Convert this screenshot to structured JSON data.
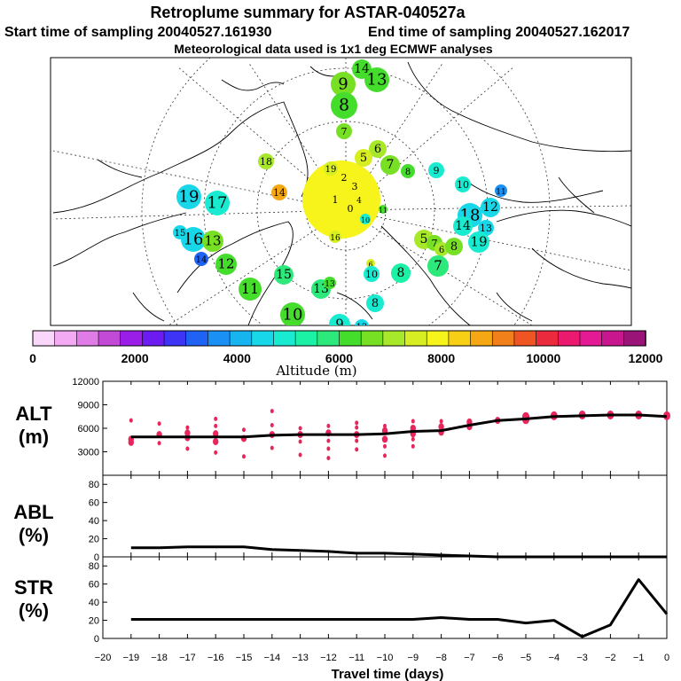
{
  "header": {
    "title": "Retroplume summary for ASTAR-040527a",
    "start": "Start time of sampling 20040527.161930",
    "end": "End time of sampling 20040527.162017",
    "met": "Meteorological data used is 1x1 deg ECMWF analyses"
  },
  "colorbar": {
    "colors": [
      "#fbd6fb",
      "#f3aaf3",
      "#e07ce6",
      "#c24ad6",
      "#9a1ee8",
      "#6c1cf0",
      "#3d34f5",
      "#1f63f5",
      "#1a90f5",
      "#18b4f0",
      "#17d7e8",
      "#18ebd0",
      "#1cf2a6",
      "#2de87a",
      "#44dd2c",
      "#78e024",
      "#a8e82a",
      "#d7ee22",
      "#f6f41a",
      "#f7d016",
      "#f5a814",
      "#f2801a",
      "#ee5522",
      "#ec2a3e",
      "#ec1a6e",
      "#e41a94",
      "#c8168e",
      "#9a1478"
    ],
    "ticks": [
      "0",
      "2000",
      "4000",
      "6000",
      "8000",
      "10000",
      "12000"
    ],
    "label": "Altitude (m)"
  },
  "map": {
    "points": [
      {
        "label": "14",
        "color": "#44dd2c"
      },
      {
        "label": "9",
        "color": "#78e024"
      },
      {
        "label": "13",
        "color": "#44dd2c"
      },
      {
        "label": "8",
        "color": "#44dd2c"
      },
      {
        "label": "7",
        "color": "#78e024"
      },
      {
        "label": "6",
        "color": "#a8e82a"
      },
      {
        "label": "5",
        "color": "#d7ee22"
      },
      {
        "label": "7",
        "color": "#78e024"
      },
      {
        "label": "8",
        "color": "#44dd2c"
      },
      {
        "label": "9",
        "color": "#18ebd0"
      },
      {
        "label": "10",
        "color": "#18ebd0"
      },
      {
        "label": "11",
        "color": "#1a90f5"
      },
      {
        "label": "12",
        "color": "#17d7e8"
      },
      {
        "label": "18",
        "color": "#17d7e8"
      },
      {
        "label": "14",
        "color": "#18ebd0"
      },
      {
        "label": "13",
        "color": "#17d7e8"
      },
      {
        "label": "19",
        "color": "#18ebd0"
      },
      {
        "label": "5",
        "color": "#a8e82a"
      },
      {
        "label": "7",
        "color": "#78e024"
      },
      {
        "label": "6",
        "color": "#a8e82a"
      },
      {
        "label": "8",
        "color": "#78e024"
      },
      {
        "label": "7",
        "color": "#2de87a"
      },
      {
        "label": "8",
        "color": "#1cf2a6"
      },
      {
        "label": "6",
        "color": "#d7ee22"
      },
      {
        "label": "10",
        "color": "#18ebd0"
      },
      {
        "label": "8",
        "color": "#18ebd0"
      },
      {
        "label": "9",
        "color": "#18ebd0"
      },
      {
        "label": "12",
        "color": "#17d7e8"
      },
      {
        "label": "10",
        "color": "#44dd2c"
      },
      {
        "label": "13",
        "color": "#2de87a"
      },
      {
        "label": "13",
        "color": "#44dd2c"
      },
      {
        "label": "15",
        "color": "#2de87a"
      },
      {
        "label": "11",
        "color": "#44dd2c"
      },
      {
        "label": "12",
        "color": "#44dd2c"
      },
      {
        "label": "14",
        "color": "#1f63f5"
      },
      {
        "label": "16",
        "color": "#17d7e8"
      },
      {
        "label": "15",
        "color": "#17d7e8"
      },
      {
        "label": "13",
        "color": "#78e024"
      },
      {
        "label": "19",
        "color": "#17d7e8"
      },
      {
        "label": "17",
        "color": "#18ebd0"
      },
      {
        "label": "18",
        "color": "#a8e82a"
      },
      {
        "label": "14",
        "color": "#f5a814"
      },
      {
        "label": "19",
        "color": "#d7ee22"
      },
      {
        "label": "2",
        "color": "#f6f41a"
      },
      {
        "label": "3",
        "color": "#f6f41a"
      },
      {
        "label": "1",
        "color": "#f6f41a"
      },
      {
        "label": "0",
        "color": "#f6f41a"
      },
      {
        "label": "4",
        "color": "#f6f41a"
      },
      {
        "label": "16",
        "color": "#d7ee22"
      },
      {
        "label": "10",
        "color": "#18ebd0"
      },
      {
        "label": "11",
        "color": "#44dd2c"
      }
    ]
  },
  "chart_data": [
    {
      "type": "line",
      "name": "ALT",
      "ylabel": "ALT (m)",
      "ylabel_lines": [
        "ALT",
        "(m)"
      ],
      "ylim": [
        0,
        12000
      ],
      "yticks": [
        "3000",
        "6000",
        "9000",
        "12000"
      ],
      "xlim": [
        -20,
        0
      ],
      "x": [
        -19,
        -18,
        -17,
        -16,
        -15,
        -14,
        -13,
        -12,
        -11,
        -10,
        -9,
        -8,
        -7,
        -6,
        -5,
        -4,
        -3,
        -2,
        -1,
        0
      ],
      "values": [
        4900,
        4900,
        4900,
        4900,
        4900,
        5100,
        5200,
        5200,
        5200,
        5300,
        5600,
        5700,
        6400,
        7000,
        7200,
        7500,
        7600,
        7700,
        7700,
        7500
      ],
      "scatter": [
        {
          "x": -19,
          "y": 7000
        },
        {
          "x": -19,
          "y": 4600
        },
        {
          "x": -19,
          "y": 4200
        },
        {
          "x": -18,
          "y": 6600
        },
        {
          "x": -18,
          "y": 5200
        },
        {
          "x": -18,
          "y": 4100
        },
        {
          "x": -17,
          "y": 6100
        },
        {
          "x": -17,
          "y": 5400
        },
        {
          "x": -17,
          "y": 4800
        },
        {
          "x": -17,
          "y": 3400
        },
        {
          "x": -16,
          "y": 7200
        },
        {
          "x": -16,
          "y": 6300
        },
        {
          "x": -16,
          "y": 5300
        },
        {
          "x": -16,
          "y": 4300
        },
        {
          "x": -16,
          "y": 2900
        },
        {
          "x": -15,
          "y": 5800
        },
        {
          "x": -15,
          "y": 4700
        },
        {
          "x": -15,
          "y": 2400
        },
        {
          "x": -14,
          "y": 8200
        },
        {
          "x": -14,
          "y": 6400
        },
        {
          "x": -14,
          "y": 5200
        },
        {
          "x": -14,
          "y": 3500
        },
        {
          "x": -13,
          "y": 6000
        },
        {
          "x": -13,
          "y": 5200
        },
        {
          "x": -13,
          "y": 4300
        },
        {
          "x": -13,
          "y": 2600
        },
        {
          "x": -12,
          "y": 6300
        },
        {
          "x": -12,
          "y": 5400
        },
        {
          "x": -12,
          "y": 4400
        },
        {
          "x": -12,
          "y": 3400
        },
        {
          "x": -12,
          "y": 2200
        },
        {
          "x": -11,
          "y": 6700
        },
        {
          "x": -11,
          "y": 6100
        },
        {
          "x": -11,
          "y": 5200
        },
        {
          "x": -11,
          "y": 4400
        },
        {
          "x": -11,
          "y": 3300
        },
        {
          "x": -10,
          "y": 6300
        },
        {
          "x": -10,
          "y": 5700
        },
        {
          "x": -10,
          "y": 4600
        },
        {
          "x": -10,
          "y": 3700
        },
        {
          "x": -10,
          "y": 2500
        },
        {
          "x": -9,
          "y": 6900
        },
        {
          "x": -9,
          "y": 6000
        },
        {
          "x": -9,
          "y": 5300
        },
        {
          "x": -9,
          "y": 4600
        },
        {
          "x": -9,
          "y": 3700
        },
        {
          "x": -8,
          "y": 6900
        },
        {
          "x": -8,
          "y": 6200
        },
        {
          "x": -8,
          "y": 5500
        },
        {
          "x": -7,
          "y": 6800
        },
        {
          "x": -7,
          "y": 6200
        },
        {
          "x": -6,
          "y": 7000
        },
        {
          "x": -5,
          "y": 7100
        },
        {
          "x": -5,
          "y": 7500
        },
        {
          "x": -4,
          "y": 7600
        },
        {
          "x": -3,
          "y": 7700
        },
        {
          "x": -2,
          "y": 7700
        },
        {
          "x": -1,
          "y": 7700
        },
        {
          "x": 0,
          "y": 7600
        }
      ]
    },
    {
      "type": "line",
      "name": "ABL",
      "ylabel": "ABL (%)",
      "ylabel_lines": [
        "ABL",
        "(%)"
      ],
      "ylim": [
        0,
        90
      ],
      "yticks": [
        "0",
        "20",
        "40",
        "60",
        "80"
      ],
      "xlim": [
        -20,
        0
      ],
      "x": [
        -19,
        -18,
        -17,
        -16,
        -15,
        -14,
        -13,
        -12,
        -11,
        -10,
        -9,
        -8,
        -7,
        -6,
        -5,
        -4,
        -3,
        -2,
        -1,
        0
      ],
      "values": [
        10,
        10,
        11,
        11,
        11,
        8,
        7,
        6,
        4,
        4,
        3,
        2,
        1,
        0,
        0,
        0,
        0,
        0,
        0,
        0
      ]
    },
    {
      "type": "line",
      "name": "STR",
      "ylabel": "STR (%)",
      "ylabel_lines": [
        "STR",
        "(%)"
      ],
      "ylim": [
        0,
        90
      ],
      "yticks": [
        "0",
        "20",
        "40",
        "60",
        "80"
      ],
      "xlim": [
        -20,
        0
      ],
      "xlabel": "Travel time (days)",
      "xticks": [
        "−20",
        "−19",
        "−18",
        "−17",
        "−16",
        "−15",
        "−14",
        "−13",
        "−12",
        "−11",
        "−10",
        "−9",
        "−8",
        "−7",
        "−6",
        "−5",
        "−4",
        "−3",
        "−2",
        "−1",
        "0"
      ],
      "x": [
        -19,
        -18,
        -17,
        -16,
        -15,
        -14,
        -13,
        -12,
        -11,
        -10,
        -9,
        -8,
        -7,
        -6,
        -5,
        -4,
        -3,
        -2,
        -1,
        0
      ],
      "values": [
        21,
        21,
        21,
        21,
        21,
        21,
        21,
        21,
        21,
        21,
        21,
        23,
        21,
        21,
        17,
        20,
        2,
        15,
        65,
        27
      ]
    }
  ]
}
